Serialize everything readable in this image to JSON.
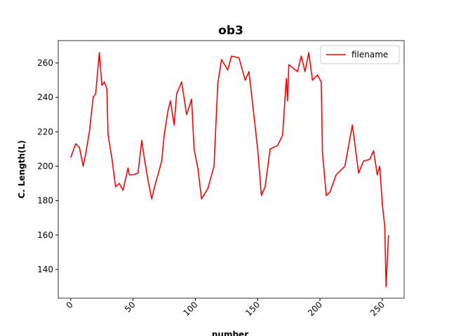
{
  "chart_data": {
    "type": "line",
    "title": "ob3",
    "xlabel": "number",
    "ylabel": "C. Length(L)",
    "x": [
      0,
      4,
      7,
      10,
      12,
      15,
      18,
      20,
      22,
      23,
      25,
      27,
      29,
      30,
      33,
      36,
      39,
      42,
      46,
      47,
      50,
      54,
      57,
      59,
      62,
      65,
      68,
      70,
      73,
      75,
      78,
      80,
      83,
      85,
      89,
      93,
      97,
      99,
      102,
      105,
      110,
      115,
      118,
      121,
      126,
      129,
      135,
      140,
      143,
      146,
      150,
      153,
      156,
      160,
      166,
      170,
      173,
      174,
      175,
      182,
      185,
      188,
      191,
      194,
      198,
      201,
      202,
      205,
      208,
      213,
      220,
      226,
      231,
      235,
      240,
      243,
      246,
      248,
      250,
      252,
      253,
      255
    ],
    "series": [
      {
        "name": "filename",
        "color": "#ff0000",
        "values": [
          205,
          213,
          211,
          200,
          207,
          220,
          240,
          242,
          258,
          266,
          247,
          249,
          245,
          218,
          205,
          188,
          190,
          186,
          199,
          195,
          195,
          196,
          215,
          205,
          192,
          181,
          190,
          195,
          203,
          218,
          232,
          238,
          224,
          242,
          249,
          230,
          239,
          210,
          199,
          181,
          187,
          200,
          248,
          262,
          256,
          264,
          263,
          250,
          255,
          236,
          210,
          183,
          188,
          210,
          212,
          218,
          251,
          238,
          259,
          255,
          264,
          255,
          266,
          250,
          253,
          249,
          208,
          183,
          185,
          195,
          200,
          224,
          196,
          203,
          204,
          209,
          195,
          200,
          178,
          165,
          130,
          160
        ]
      }
    ],
    "xlim": [
      -10,
      267.5
    ],
    "ylim": [
      123.3,
      273
    ],
    "xticks": [
      0,
      50,
      100,
      150,
      200,
      250
    ],
    "yticks": [
      140,
      160,
      180,
      200,
      220,
      240,
      260
    ],
    "legend": "upper right"
  }
}
